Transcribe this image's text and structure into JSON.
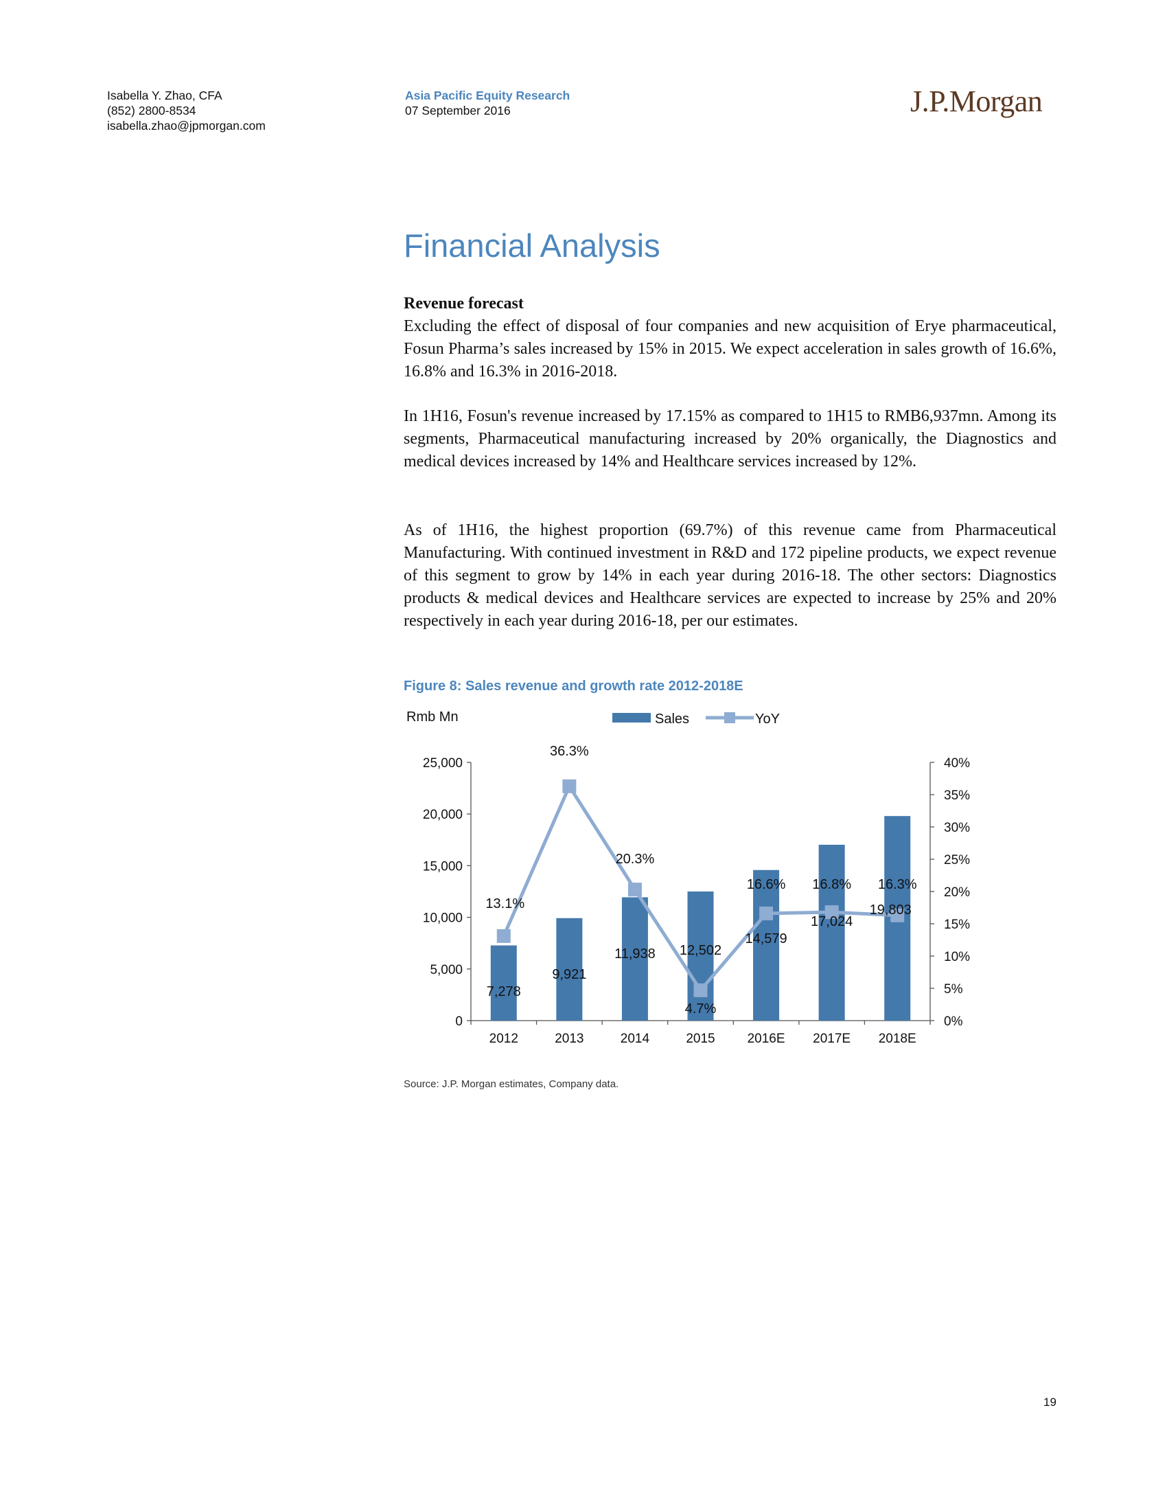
{
  "header": {
    "author_name": "Isabella Y. Zhao, CFA",
    "author_phone": "(852) 2800-8534",
    "author_email": "isabella.zhao@jpmorgan.com",
    "series": "Asia Pacific Equity Research",
    "date": "07 September 2016",
    "brand": "J.P.Morgan"
  },
  "section": {
    "title": "Financial Analysis",
    "subheading": "Revenue forecast",
    "paragraphs": [
      "Excluding the effect of disposal of four companies and new acquisition of Erye pharmaceutical, Fosun Pharma’s sales increased by 15% in 2015. We expect acceleration in sales growth of 16.6%, 16.8% and 16.3% in 2016-2018.",
      "In 1H16, Fosun's revenue increased by 17.15% as compared to 1H15 to RMB6,937mn. Among its segments, Pharmaceutical manufacturing increased by 20% organically, the Diagnostics and medical devices increased by 14% and Healthcare services increased by 12%.",
      "As of 1H16, the highest proportion (69.7%) of this revenue came from Pharmaceutical Manufacturing. With continued investment in R&D and 172 pipeline products, we expect revenue of this segment to grow by 14% in each year during 2016-18. The other sectors: Diagnostics products & medical devices and Healthcare services are expected to increase by 25% and 20% respectively in each year during 2016-18, per our estimates."
    ]
  },
  "figure": {
    "title": "Figure 8: Sales revenue and growth rate 2012-2018E",
    "source": "Source: J.P. Morgan estimates, Company data."
  },
  "chart_data": {
    "type": "bar",
    "title": "",
    "ylabel": "Rmb Mn",
    "categories": [
      "2012",
      "2013",
      "2014",
      "2015",
      "2016E",
      "2017E",
      "2018E"
    ],
    "series": [
      {
        "name": "Sales",
        "type": "bar",
        "axis": "left",
        "values": [
          7278,
          9921,
          11938,
          12502,
          14579,
          17024,
          19803
        ],
        "labels": [
          "7,278",
          "9,921",
          "11,938",
          "12,502",
          "14,579",
          "17,024",
          "19,803"
        ],
        "color": "#4479ac"
      },
      {
        "name": "YoY",
        "type": "line",
        "axis": "right",
        "values": [
          13.1,
          36.3,
          20.3,
          4.7,
          16.6,
          16.8,
          16.3
        ],
        "labels": [
          "13.1%",
          "36.3%",
          "20.3%",
          "4.7%",
          "16.6%",
          "16.8%",
          "16.3%"
        ],
        "color": "#8facd2"
      }
    ],
    "y_left": {
      "min": 0,
      "max": 25000,
      "ticks": [
        0,
        5000,
        10000,
        15000,
        20000,
        25000
      ],
      "tick_labels": [
        "0",
        "5,000",
        "10,000",
        "15,000",
        "20,000",
        "25,000"
      ]
    },
    "y_right": {
      "min": 0,
      "max": 40,
      "ticks": [
        0,
        5,
        10,
        15,
        20,
        25,
        30,
        35,
        40
      ],
      "tick_labels": [
        "0%",
        "5%",
        "10%",
        "15%",
        "20%",
        "25%",
        "30%",
        "35%",
        "40%"
      ]
    },
    "grid": false,
    "legend": "top-center"
  },
  "page_number": "19"
}
